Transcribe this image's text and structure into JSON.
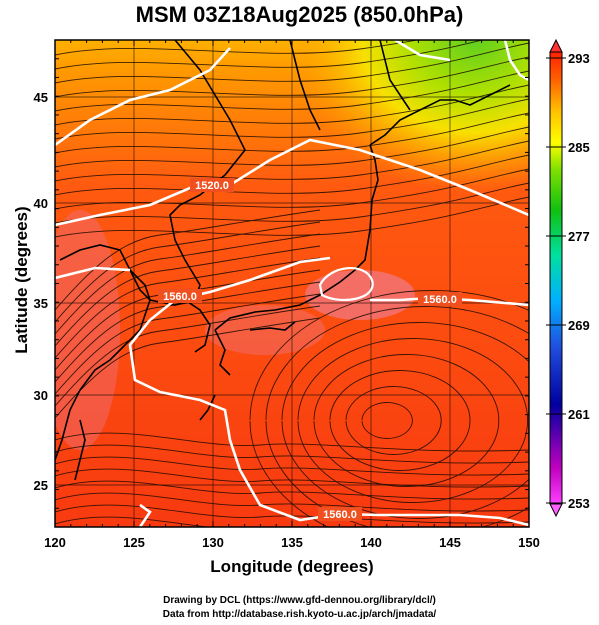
{
  "title": "MSM 03Z18Aug2025 (850.0hPa)",
  "axes": {
    "xlabel": "Longitude (degrees)",
    "ylabel": "Latitude  (degrees)",
    "x_ticks": [
      "120",
      "125",
      "130",
      "135",
      "140",
      "145",
      "150"
    ],
    "y_ticks": [
      "25",
      "30",
      "35",
      "40",
      "45"
    ],
    "xlim": [
      120,
      150
    ],
    "ylim": [
      22.5,
      48
    ]
  },
  "colorbar": {
    "ticks": [
      "293",
      "285",
      "277",
      "269",
      "261",
      "253"
    ],
    "min": 253,
    "max": 293,
    "colors": [
      "#ff40ff",
      "#c000c0",
      "#0000a0",
      "#2050e0",
      "#00b0ff",
      "#00e0a0",
      "#10c010",
      "#80e000",
      "#ffff00",
      "#ffc000",
      "#ff6000",
      "#ff2000"
    ]
  },
  "contours": {
    "labels": [
      "1520.0",
      "1560.0",
      "1560.0",
      "1560.0"
    ]
  },
  "credits": {
    "line1": "Drawing by DCL (https://www.gfd-dennou.org/library/dcl/)",
    "line2": "Data from http://database.rish.kyoto-u.ac.jp/arch/jmadata/"
  },
  "chart_data": {
    "type": "heatmap",
    "title": "MSM 03Z18Aug2025 (850.0hPa)",
    "xlabel": "Longitude (degrees)",
    "ylabel": "Latitude  (degrees)",
    "xlim": [
      120,
      150
    ],
    "ylim": [
      22.5,
      48
    ],
    "colorbar_range": [
      253,
      293
    ],
    "colorbar_ticks": [
      293,
      285,
      277,
      269,
      261,
      253
    ],
    "contour_levels": [
      1520.0,
      1560.0
    ],
    "grid": true
  }
}
